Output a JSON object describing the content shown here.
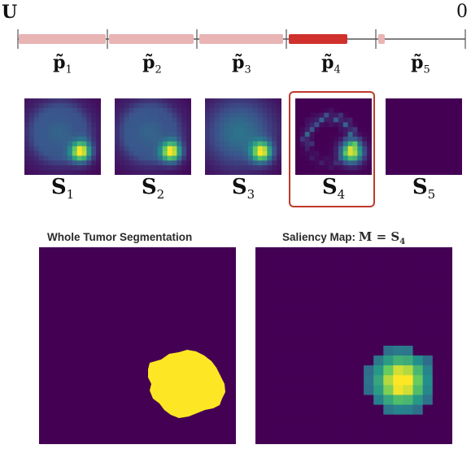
{
  "timeline": {
    "start_label": "U",
    "end_label": "0",
    "segments": [
      {
        "base": "p̃",
        "sub": "1"
      },
      {
        "base": "p̃",
        "sub": "2"
      },
      {
        "base": "p̃",
        "sub": "3"
      },
      {
        "base": "p̃",
        "sub": "4"
      },
      {
        "base": "p̃",
        "sub": "5"
      }
    ],
    "highlighted_segment": 4,
    "colors": {
      "normal": "#e8b4b4",
      "highlight": "#d0312d",
      "line": "#555555"
    }
  },
  "maps": [
    {
      "base": "S",
      "sub": "1"
    },
    {
      "base": "S",
      "sub": "2"
    },
    {
      "base": "S",
      "sub": "3"
    },
    {
      "base": "S",
      "sub": "4"
    },
    {
      "base": "S",
      "sub": "5"
    }
  ],
  "highlight_box_color": "#c0392b",
  "panels": {
    "segmentation": {
      "title": "Whole Tumor Segmentation"
    },
    "saliency": {
      "title_prefix": "Saliency Map: ",
      "math_lhs": "M",
      "math_eq": " = ",
      "math_rhs": "S",
      "math_sub": "4"
    }
  },
  "colormap": {
    "background": "#440154",
    "tumor": "#fde725"
  }
}
